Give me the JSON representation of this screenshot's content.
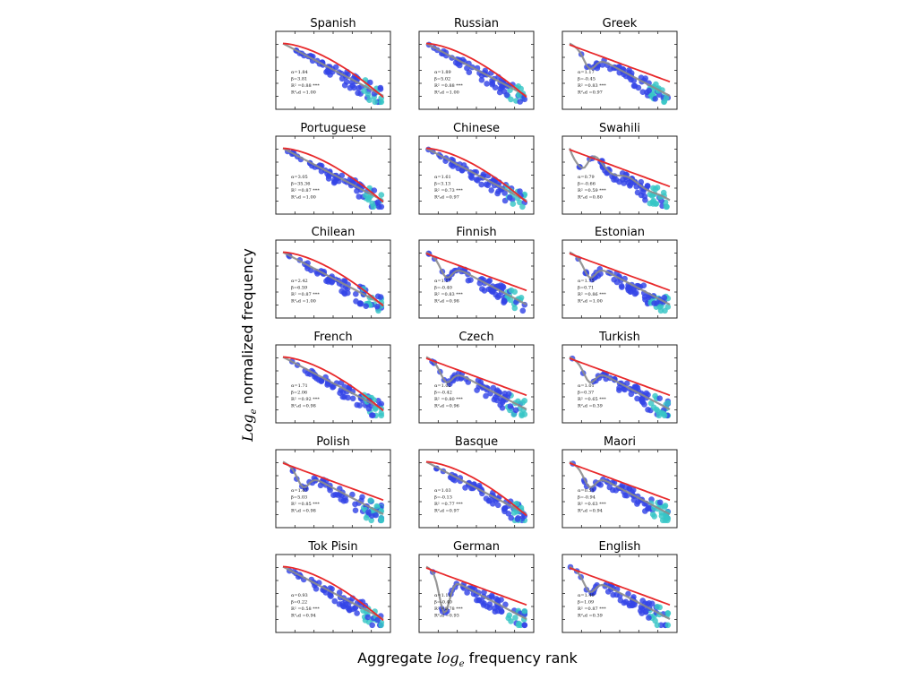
{
  "figure": {
    "ylabel_prefix": "Log",
    "ylabel_sub": "e",
    "ylabel_rest": " normalized frequency",
    "xlabel_prefix": "Aggregate ",
    "xlabel_math": "log",
    "xlabel_sub": "e",
    "xlabel_rest": " frequency rank"
  },
  "colors": {
    "point_main": "#3344e6",
    "point_dense": "#37c6c6",
    "fit_line": "#e8292b",
    "trend_line": "#8c8c8c",
    "frame": "#222222"
  },
  "chart_data": [
    {
      "type": "scatter",
      "title": "Spanish",
      "shape": "smooth",
      "stats": [
        "α=1.84",
        "β=3.81",
        "R² =0.88 ***",
        "R²ₐd =1.00"
      ]
    },
    {
      "type": "scatter",
      "title": "Russian",
      "shape": "smooth",
      "stats": [
        "α=1.89",
        "β=5.02",
        "R² =0.88 ***",
        "R²ₐd =1.00"
      ]
    },
    {
      "type": "scatter",
      "title": "Greek",
      "shape": "dip",
      "stats": [
        "α=1.17",
        "β=-0.45",
        "R² =0.83 ***",
        "R²ₐd =0.97"
      ]
    },
    {
      "type": "scatter",
      "title": "Portuguese",
      "shape": "smooth",
      "stats": [
        "α=3.05",
        "β=35.36",
        "R² =0.87 ***",
        "R²ₐd =1.00"
      ]
    },
    {
      "type": "scatter",
      "title": "Chinese",
      "shape": "smooth",
      "stats": [
        "α=1.61",
        "β=3.13",
        "R² =0.73 ***",
        "R²ₐd =0.97"
      ]
    },
    {
      "type": "scatter",
      "title": "Swahili",
      "shape": "wave",
      "stats": [
        "α=0.79",
        "β=-0.66",
        "R² =0.59 ***",
        "R²ₐd =0.80"
      ]
    },
    {
      "type": "scatter",
      "title": "Chilean",
      "shape": "smooth",
      "stats": [
        "α=2.42",
        "β=6.59",
        "R² =0.87 ***",
        "R²ₐd =1.00"
      ]
    },
    {
      "type": "scatter",
      "title": "Finnish",
      "shape": "dip",
      "stats": [
        "α=1.17",
        "β=-0.40",
        "R² =0.83 ***",
        "R²ₐd =0.98"
      ]
    },
    {
      "type": "scatter",
      "title": "Estonian",
      "shape": "dip",
      "stats": [
        "α=1.75",
        "β=0.71",
        "R² =0.86 ***",
        "R²ₐd =1.00"
      ]
    },
    {
      "type": "scatter",
      "title": "French",
      "shape": "smooth",
      "stats": [
        "α=1.71",
        "β=2.06",
        "R² =0.92 ***",
        "R²ₐd =0.98"
      ]
    },
    {
      "type": "scatter",
      "title": "Czech",
      "shape": "dip",
      "stats": [
        "α=1.02",
        "β=-0.42",
        "R² =0.80 ***",
        "R²ₐd =0.96"
      ]
    },
    {
      "type": "scatter",
      "title": "Turkish",
      "shape": "dip",
      "stats": [
        "α=1.01",
        "β=0.37",
        "R² =0.65 ***",
        "R²ₐd =0.39"
      ]
    },
    {
      "type": "scatter",
      "title": "Polish",
      "shape": "dip",
      "stats": [
        "α=1.67",
        "β=5.03",
        "R² =0.85 ***",
        "R²ₐd =0.98"
      ]
    },
    {
      "type": "scatter",
      "title": "Basque",
      "shape": "smooth",
      "stats": [
        "α=1.03",
        "β=-0.13",
        "R² =0.77 ***",
        "R²ₐd =0.97"
      ]
    },
    {
      "type": "scatter",
      "title": "Maori",
      "shape": "dip",
      "stats": [
        "α=0.51",
        "β=-0.94",
        "R² =0.63 ***",
        "R²ₐd =0.94"
      ]
    },
    {
      "type": "scatter",
      "title": "Tok Pisin",
      "shape": "smooth",
      "stats": [
        "α=0.93",
        "β=0.22",
        "R² =0.58 ***",
        "R²ₐd =0.94"
      ]
    },
    {
      "type": "scatter",
      "title": "German",
      "shape": "deep",
      "stats": [
        "α=1.11",
        "β=-0.40",
        "R² =0.78 ***",
        "R²ₐd =0.93"
      ]
    },
    {
      "type": "scatter",
      "title": "English",
      "shape": "dip",
      "stats": [
        "α=1.40",
        "β=1.09",
        "R² =0.87 ***",
        "R²ₐd =0.39"
      ]
    }
  ]
}
